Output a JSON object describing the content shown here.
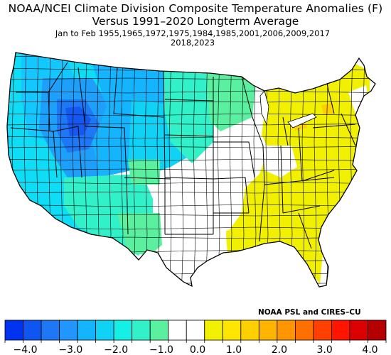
{
  "header": {
    "title": "NOAA/NCEI Climate Division Composite Temperature Anomalies (F)",
    "subtitle": "Versus 1991–2020 Longterm Average",
    "period_line": "Jan to Feb   1955,1965,1972,1975,1984,1985,2001,2006,2009,2017",
    "years_line": "2018,2023"
  },
  "credit": "NOAA PSL and CIRES–CU",
  "colors": {
    "deep_blue": "#0a3cf0",
    "blue": "#1e78f5",
    "sky_blue": "#14a8ff",
    "cyan": "#0fdcf5",
    "aqua_green": "#32f0c8",
    "green": "#5af0a0",
    "neutral": "#ffffff",
    "yellow": "#f0f000",
    "orange": "#ffd000",
    "border": "#000000"
  },
  "legend": {
    "colors": [
      "#0033f0",
      "#0f55f0",
      "#1e78f5",
      "#2296ff",
      "#14b4ff",
      "#0fd2f5",
      "#14f0e6",
      "#32f0c8",
      "#5af0a0",
      "#ffffff",
      "#ffffff",
      "#f0f000",
      "#ffe600",
      "#ffd000",
      "#ffb400",
      "#ff9600",
      "#ff7000",
      "#ff4000",
      "#ff1400",
      "#dc0000",
      "#b40000"
    ],
    "ticks": [
      "−4.0",
      "−3.0",
      "−2.0",
      "−1.0",
      "0.0",
      "1.0",
      "2.0",
      "3.0",
      "4.0"
    ]
  }
}
